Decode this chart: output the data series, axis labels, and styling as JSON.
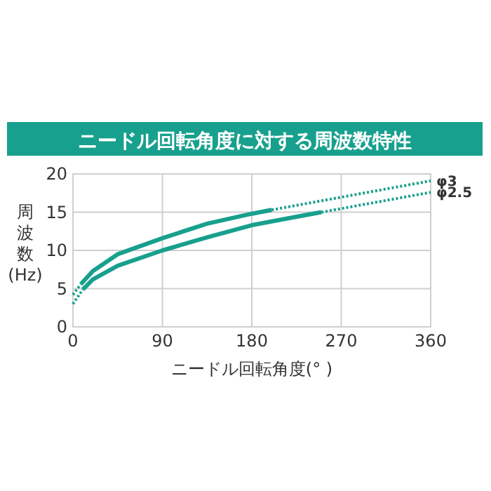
{
  "chart_data": {
    "type": "line",
    "title": "ニードル回転角度に対する周波数特性",
    "xlabel": "ニードル回転角度(° )",
    "ylabel": "周波数(Hz)",
    "xlim": [
      0,
      360
    ],
    "xticks": [
      0,
      90,
      180,
      270,
      360
    ],
    "ylim": [
      0,
      20
    ],
    "yticks": [
      0,
      5,
      10,
      15,
      20
    ],
    "grid": true,
    "series": [
      {
        "color": "#17a08d",
        "line_style": "dotted",
        "x": [
          0,
          8
        ],
        "values": [
          4.2,
          5.6
        ]
      },
      {
        "color": "#17a08d",
        "line_style": "solid",
        "x": [
          8,
          20,
          45,
          90,
          135,
          180,
          200
        ],
        "values": [
          5.6,
          7.3,
          9.5,
          11.6,
          13.5,
          14.8,
          15.3
        ]
      },
      {
        "name": "φ3",
        "color": "#17a08d",
        "line_style": "dotted",
        "x": [
          200,
          360
        ],
        "values": [
          15.3,
          19.1
        ]
      },
      {
        "color": "#17a08d",
        "line_style": "dotted",
        "x": [
          0,
          10
        ],
        "values": [
          3.0,
          4.9
        ]
      },
      {
        "color": "#17a08d",
        "line_style": "solid",
        "x": [
          10,
          20,
          45,
          90,
          135,
          180,
          225,
          250
        ],
        "values": [
          4.9,
          6.2,
          8.0,
          10.0,
          11.7,
          13.3,
          14.4,
          15.0
        ]
      },
      {
        "name": "φ2.5",
        "color": "#17a08d",
        "line_style": "dotted",
        "x": [
          250,
          360
        ],
        "values": [
          15.0,
          17.6
        ]
      }
    ]
  }
}
